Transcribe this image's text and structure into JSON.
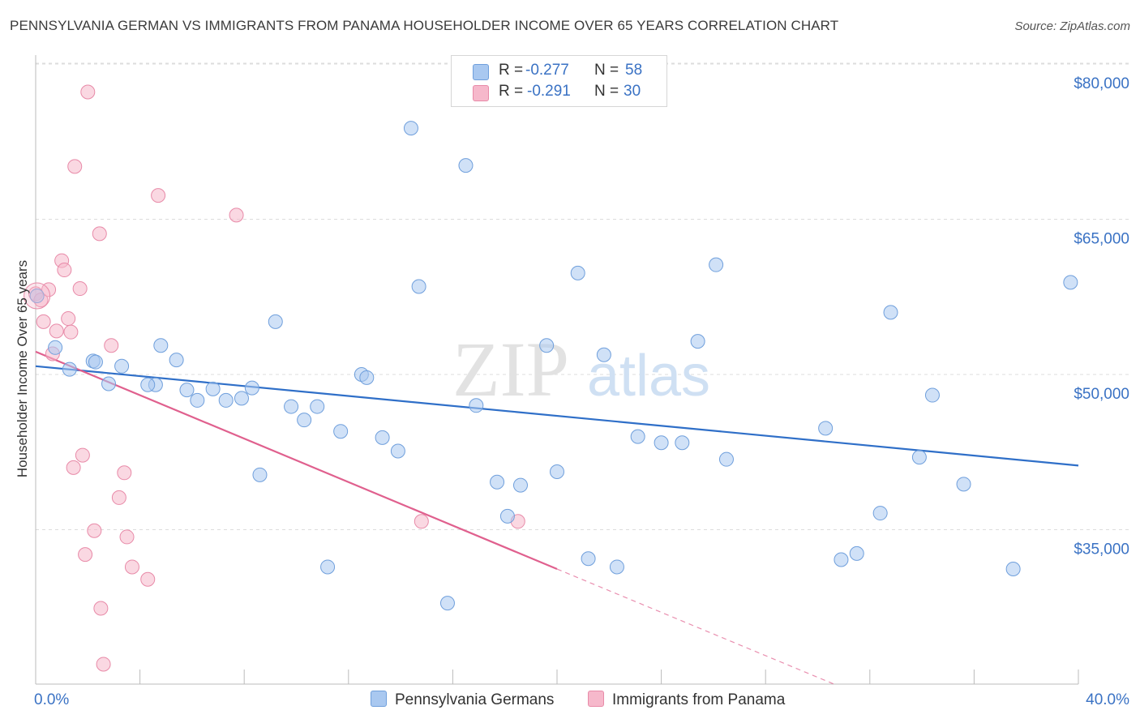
{
  "header": {
    "title": "PENNSYLVANIA GERMAN VS IMMIGRANTS FROM PANAMA HOUSEHOLDER INCOME OVER 65 YEARS CORRELATION CHART",
    "source": "Source: ZipAtlas.com"
  },
  "legend": {
    "rows": [
      {
        "r_label": "R =",
        "r_value": "-0.277",
        "n_label": "N =",
        "n_value": "58",
        "color": "#a9c8f0"
      },
      {
        "r_label": "R =",
        "r_value": "-0.291",
        "n_label": "N =",
        "n_value": "30",
        "color": "#f6b8cb"
      }
    ]
  },
  "bottom_legend": {
    "series_a": "Pennsylvania Germans",
    "series_b": "Immigrants from Panama"
  },
  "watermark": {
    "zip": "ZIP",
    "atlas": "atlas"
  },
  "colors": {
    "blue_fill": "#a9c8f0",
    "blue_stroke": "#6f9fdc",
    "blue_line": "#2f6fc8",
    "pink_fill": "#f6b8cb",
    "pink_stroke": "#e88aa8",
    "pink_line": "#e0608e",
    "axis_label": "#3a72c4",
    "grid": "#dcdcdc"
  },
  "chart_data": {
    "type": "scatter",
    "title": "PENNSYLVANIA GERMAN VS IMMIGRANTS FROM PANAMA HOUSEHOLDER INCOME OVER 65 YEARS CORRELATION CHART",
    "xlabel": "",
    "ylabel": "Householder Income Over 65 years",
    "xlim": [
      0,
      40
    ],
    "ylim": [
      20000,
      82000
    ],
    "x_tick_labels": [
      "0.0%",
      "40.0%"
    ],
    "y_ticks": [
      35000,
      50000,
      65000,
      80000
    ],
    "y_tick_labels": [
      "$35,000",
      "$50,000",
      "$65,000",
      "$80,000"
    ],
    "grid": true,
    "legend_position": "top-center",
    "series": [
      {
        "name": "Pennsylvania Germans",
        "color": "#a9c8f0",
        "r": -0.277,
        "n": 58,
        "trend": {
          "x": [
            0,
            40
          ],
          "y": [
            50800,
            41200
          ]
        },
        "points": [
          [
            0.05,
            57600
          ],
          [
            0.75,
            52600
          ],
          [
            1.3,
            50500
          ],
          [
            2.2,
            51300
          ],
          [
            2.3,
            51200
          ],
          [
            2.8,
            49100
          ],
          [
            3.3,
            50800
          ],
          [
            4.6,
            49000
          ],
          [
            4.3,
            49000
          ],
          [
            4.8,
            52800
          ],
          [
            5.4,
            51400
          ],
          [
            5.8,
            48500
          ],
          [
            6.2,
            47500
          ],
          [
            6.8,
            48600
          ],
          [
            7.3,
            47500
          ],
          [
            7.9,
            47700
          ],
          [
            8.3,
            48700
          ],
          [
            8.6,
            40300
          ],
          [
            9.2,
            55100
          ],
          [
            9.8,
            46900
          ],
          [
            10.3,
            45600
          ],
          [
            10.8,
            46900
          ],
          [
            11.2,
            31400
          ],
          [
            11.7,
            44500
          ],
          [
            12.5,
            50000
          ],
          [
            12.7,
            49700
          ],
          [
            13.3,
            43900
          ],
          [
            13.9,
            42600
          ],
          [
            14.4,
            73800
          ],
          [
            14.7,
            58500
          ],
          [
            15.8,
            27900
          ],
          [
            16.5,
            70200
          ],
          [
            16.9,
            47000
          ],
          [
            17.7,
            39600
          ],
          [
            18.1,
            36300
          ],
          [
            18.6,
            39300
          ],
          [
            19.6,
            52800
          ],
          [
            20.0,
            40600
          ],
          [
            20.8,
            59800
          ],
          [
            21.2,
            32200
          ],
          [
            21.8,
            51900
          ],
          [
            22.3,
            31400
          ],
          [
            23.1,
            44000
          ],
          [
            24.0,
            43400
          ],
          [
            24.8,
            43400
          ],
          [
            25.4,
            53200
          ],
          [
            26.1,
            60600
          ],
          [
            26.5,
            41800
          ],
          [
            30.3,
            44800
          ],
          [
            30.9,
            32100
          ],
          [
            31.5,
            32700
          ],
          [
            32.4,
            36600
          ],
          [
            32.8,
            56000
          ],
          [
            33.9,
            42000
          ],
          [
            34.4,
            48000
          ],
          [
            35.6,
            39400
          ],
          [
            37.5,
            31200
          ],
          [
            39.7,
            58900
          ]
        ]
      },
      {
        "name": "Immigrants from Panama",
        "color": "#f6b8cb",
        "r": -0.291,
        "n": 30,
        "trend": {
          "x": [
            0,
            20
          ],
          "y": [
            52200,
            31200
          ]
        },
        "trend_dashed": {
          "x": [
            20,
            30.7
          ],
          "y": [
            31200,
            20000
          ]
        },
        "points": [
          [
            0.0,
            57800
          ],
          [
            0.2,
            57200
          ],
          [
            0.3,
            55100
          ],
          [
            0.5,
            58200
          ],
          [
            0.65,
            52000
          ],
          [
            0.8,
            54200
          ],
          [
            1.0,
            61000
          ],
          [
            1.1,
            60100
          ],
          [
            1.25,
            55400
          ],
          [
            1.35,
            54100
          ],
          [
            1.45,
            41000
          ],
          [
            1.5,
            70100
          ],
          [
            1.7,
            58300
          ],
          [
            1.8,
            42200
          ],
          [
            1.9,
            32600
          ],
          [
            2.0,
            77300
          ],
          [
            2.25,
            34900
          ],
          [
            2.45,
            63600
          ],
          [
            2.5,
            27400
          ],
          [
            2.6,
            22000
          ],
          [
            2.9,
            52800
          ],
          [
            3.2,
            38100
          ],
          [
            3.4,
            40500
          ],
          [
            3.5,
            34300
          ],
          [
            3.7,
            31400
          ],
          [
            4.3,
            30200
          ],
          [
            4.7,
            67300
          ],
          [
            7.7,
            65400
          ],
          [
            14.8,
            35800
          ],
          [
            18.5,
            35800
          ]
        ]
      }
    ]
  }
}
